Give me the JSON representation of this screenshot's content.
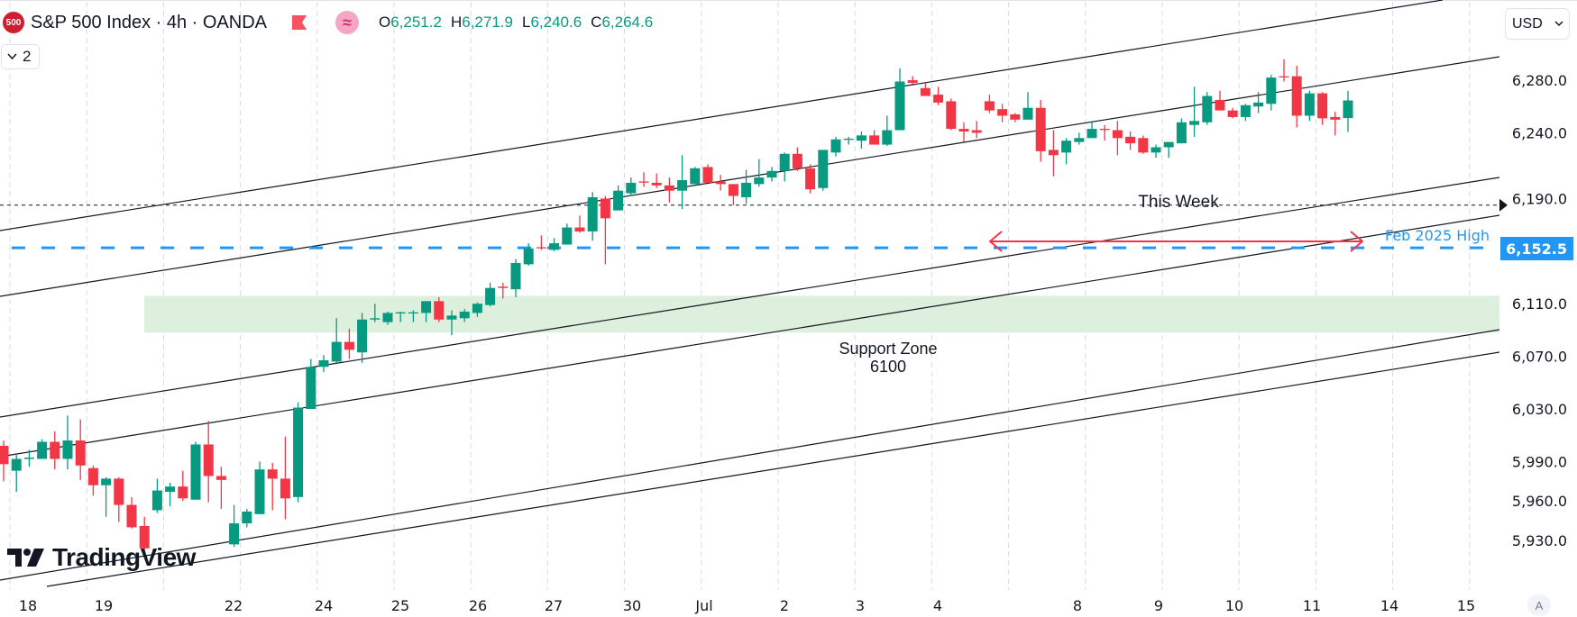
{
  "header": {
    "symbol_logo": "500",
    "title": "S&P 500 Index · 4h · OANDA",
    "icons": [
      "flag-icon",
      "approx-equal-icon"
    ],
    "ohlc": {
      "o_label": "O",
      "o_value": "6,251.2",
      "h_label": "H",
      "h_value": "6,271.9",
      "l_label": "L",
      "l_value": "6,240.6",
      "c_label": "C",
      "c_value": "6,264.6"
    },
    "collapse_count": "2"
  },
  "currency": "USD",
  "auto_scale_label": "A",
  "brand": "TradingView",
  "colors": {
    "up": "#089981",
    "down": "#f23645",
    "level": "#2196f3",
    "zone": "#dbeedb"
  },
  "chart_data": {
    "type": "candlestick",
    "symbol": "S&P 500 Index",
    "interval": "4h",
    "x_tick_labels": [
      "18",
      "19",
      "22",
      "24",
      "25",
      "26",
      "27",
      "30",
      "Jul",
      "2",
      "3",
      "4",
      "8",
      "9",
      "10",
      "11",
      "14",
      "15"
    ],
    "y_tick_labels": [
      {
        "value": 6280,
        "label": "6,280.0"
      },
      {
        "value": 6240,
        "label": "6,240.0"
      },
      {
        "value": 6190,
        "label": "6,190.0"
      },
      {
        "value": 6110,
        "label": "6,110.0"
      },
      {
        "value": 6070,
        "label": "6,070.0"
      },
      {
        "value": 6030,
        "label": "6,030.0"
      },
      {
        "value": 5990,
        "label": "5,990.0"
      },
      {
        "value": 5960,
        "label": "5,960.0"
      },
      {
        "value": 5930,
        "label": "5,930.0"
      }
    ],
    "ylim": [
      5900,
      6340
    ],
    "grid": true,
    "candles_ohlc": [
      [
        6002,
        6006,
        5975,
        5988
      ],
      [
        5983,
        5995,
        5967,
        5992
      ],
      [
        5992,
        5999,
        5986,
        5993
      ],
      [
        5992,
        6007,
        5992,
        6005
      ],
      [
        6005,
        6013,
        5984,
        5992
      ],
      [
        5992,
        6025,
        5984,
        6006
      ],
      [
        6006,
        6022,
        5976,
        5987
      ],
      [
        5985,
        5987,
        5964,
        5972
      ],
      [
        5972,
        5978,
        5948,
        5977
      ],
      [
        5977,
        5978,
        5944,
        5957
      ],
      [
        5957,
        5963,
        5939,
        5940
      ],
      [
        5941,
        5948,
        5923,
        5924
      ],
      [
        5953,
        5977,
        5951,
        5968
      ],
      [
        5967,
        5974,
        5956,
        5971
      ],
      [
        5971,
        5983,
        5960,
        5962
      ],
      [
        5961,
        6005,
        5961,
        6003
      ],
      [
        6003,
        6021,
        5959,
        5979
      ],
      [
        5979,
        5986,
        5954,
        5976
      ],
      [
        5927,
        5957,
        5925,
        5943
      ],
      [
        5943,
        5954,
        5940,
        5952
      ],
      [
        5950,
        5990,
        5950,
        5984
      ],
      [
        5984,
        5989,
        5953,
        5977
      ],
      [
        5977,
        6009,
        5946,
        5962
      ],
      [
        5963,
        6035,
        5959,
        6031
      ],
      [
        6030,
        6068,
        6030,
        6062
      ],
      [
        6062,
        6071,
        6058,
        6067
      ],
      [
        6066,
        6099,
        6065,
        6081
      ],
      [
        6081,
        6091,
        6068,
        6075
      ],
      [
        6073,
        6103,
        6065,
        6098
      ],
      [
        6098,
        6110,
        6096,
        6099
      ],
      [
        6096,
        6104,
        6094,
        6103
      ],
      [
        6103,
        6104,
        6096,
        6103.5
      ],
      [
        6103,
        6105,
        6096,
        6103.5
      ],
      [
        6103,
        6112,
        6096,
        6112
      ],
      [
        6112,
        6115,
        6096,
        6098
      ],
      [
        6098,
        6105,
        6086,
        6101
      ],
      [
        6099,
        6106,
        6096,
        6104
      ],
      [
        6103,
        6111,
        6100,
        6110
      ],
      [
        6109,
        6126,
        6108,
        6122
      ],
      [
        6123,
        6126,
        6114,
        6122
      ],
      [
        6121,
        6144,
        6115,
        6141
      ],
      [
        6140,
        6156,
        6139,
        6152
      ],
      [
        6153,
        6162,
        6151,
        6152.5
      ],
      [
        6151,
        6160,
        6150,
        6156
      ],
      [
        6155,
        6171,
        6155,
        6168
      ],
      [
        6168,
        6177,
        6164,
        6165
      ],
      [
        6165,
        6195,
        6158,
        6191
      ],
      [
        6190,
        6192,
        6140,
        6175
      ],
      [
        6181,
        6200,
        6181,
        6196
      ],
      [
        6194,
        6206,
        6192,
        6202
      ],
      [
        6203,
        6210,
        6199,
        6202.5
      ],
      [
        6202,
        6209,
        6198,
        6200
      ],
      [
        6200,
        6206,
        6187,
        6196
      ],
      [
        6196,
        6223,
        6182,
        6204
      ],
      [
        6201,
        6214,
        6201,
        6213
      ],
      [
        6214,
        6216,
        6202,
        6202
      ],
      [
        6203,
        6208,
        6196,
        6201
      ],
      [
        6201,
        6201,
        6185,
        6192
      ],
      [
        6191,
        6212,
        6186,
        6202
      ],
      [
        6201,
        6220,
        6199,
        6206
      ],
      [
        6206,
        6214,
        6203,
        6211
      ],
      [
        6211,
        6225,
        6203,
        6224
      ],
      [
        6224,
        6229,
        6211,
        6213
      ],
      [
        6213,
        6216,
        6194,
        6197
      ],
      [
        6198,
        6227,
        6196,
        6227
      ],
      [
        6225,
        6237,
        6222,
        6235
      ],
      [
        6235,
        6237,
        6231,
        6235.5
      ],
      [
        6234,
        6241,
        6228,
        6238
      ],
      [
        6238,
        6242,
        6231,
        6231
      ],
      [
        6231,
        6253,
        6230,
        6242
      ],
      [
        6242,
        6289,
        6242,
        6279
      ],
      [
        6280,
        6283,
        6277,
        6278
      ],
      [
        6274,
        6278,
        6268,
        6268
      ],
      [
        6269,
        6275,
        6261,
        6263
      ],
      [
        6264,
        6266,
        6242,
        6243
      ],
      [
        6243,
        6248,
        6233,
        6241
      ],
      [
        6242,
        6249,
        6236,
        6240
      ],
      [
        6264,
        6269,
        6255,
        6257
      ],
      [
        6258,
        6262,
        6248,
        6253
      ],
      [
        6254,
        6255,
        6248,
        6250
      ],
      [
        6250,
        6271,
        6250,
        6259
      ],
      [
        6259,
        6265,
        6218,
        6226
      ],
      [
        6227,
        6242,
        6207,
        6223
      ],
      [
        6225,
        6236,
        6216,
        6234
      ],
      [
        6233,
        6240,
        6231,
        6236
      ],
      [
        6236,
        6249,
        6236,
        6243
      ],
      [
        6243,
        6246,
        6234,
        6242.5
      ],
      [
        6242,
        6249,
        6223,
        6236
      ],
      [
        6237,
        6241,
        6227,
        6232
      ],
      [
        6236,
        6238,
        6224,
        6225
      ],
      [
        6225,
        6231,
        6221,
        6229
      ],
      [
        6229,
        6233,
        6221,
        6233
      ],
      [
        6232,
        6251,
        6232,
        6248
      ],
      [
        6246,
        6275,
        6237,
        6249
      ],
      [
        6248,
        6271,
        6246,
        6268
      ],
      [
        6265,
        6272,
        6257,
        6257
      ],
      [
        6257,
        6259,
        6251,
        6252
      ],
      [
        6252,
        6262,
        6249,
        6261
      ],
      [
        6260,
        6271,
        6255,
        6263
      ],
      [
        6262,
        6284,
        6257,
        6282
      ],
      [
        6283,
        6296,
        6279,
        6282.5
      ],
      [
        6283,
        6291,
        6244,
        6253
      ],
      [
        6253,
        6272,
        6249,
        6270
      ],
      [
        6270,
        6271,
        6246,
        6251
      ],
      [
        6252,
        6256,
        6238,
        6250
      ],
      [
        6251.2,
        6271.9,
        6240.6,
        6264.6
      ]
    ],
    "annotations": {
      "feb_high": {
        "label": "Feb 2025 High",
        "value": 6152.5,
        "price_tag": "6,152.5"
      },
      "support_zone": {
        "label_line1": "Support Zone",
        "label_line2": "6100",
        "from": 6088,
        "to": 6116
      },
      "dashed_level": {
        "value": 6185
      },
      "this_week": {
        "label": "This Week"
      }
    }
  }
}
